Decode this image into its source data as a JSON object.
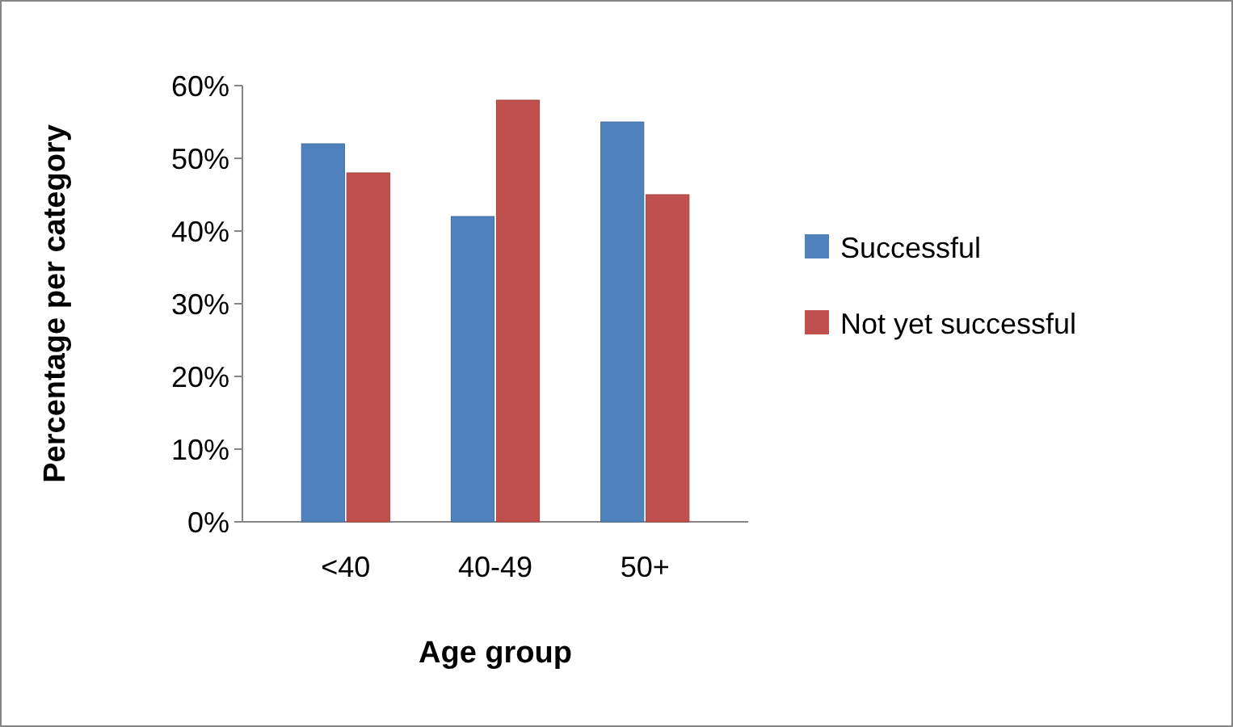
{
  "chart_data": {
    "type": "bar",
    "xlabel": "Age group",
    "ylabel": "Percentage per category",
    "categories": [
      "<40",
      "40-49",
      "50+"
    ],
    "series": [
      {
        "name": "Successful",
        "color": "#4f81bd",
        "values": [
          52,
          42,
          55
        ]
      },
      {
        "name": "Not yet successful",
        "color": "#c0504d",
        "values": [
          48,
          58,
          45
        ]
      }
    ],
    "ylim": [
      0,
      60
    ],
    "yticks": [
      {
        "value": 0,
        "label": "0%"
      },
      {
        "value": 10,
        "label": "10%"
      },
      {
        "value": 20,
        "label": "20%"
      },
      {
        "value": 30,
        "label": "30%"
      },
      {
        "value": 40,
        "label": "40%"
      },
      {
        "value": 50,
        "label": "50%"
      },
      {
        "value": 60,
        "label": "60%"
      }
    ],
    "legend": "right",
    "grid": false
  }
}
